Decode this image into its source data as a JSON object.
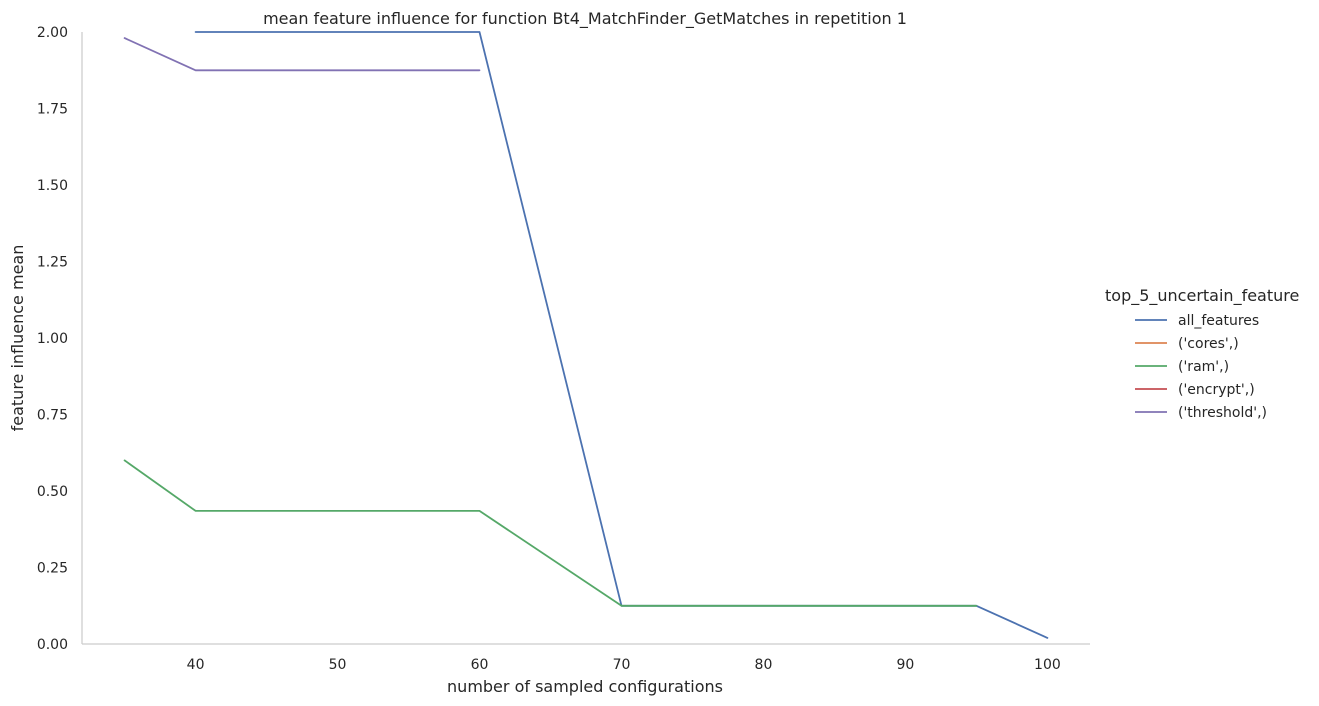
{
  "chart_data": {
    "type": "line",
    "title": "mean feature influence for function Bt4_MatchFinder_GetMatches in repetition 1",
    "xlabel": "number of sampled configurations",
    "ylabel": "feature influence mean",
    "xlim": [
      32,
      103
    ],
    "ylim": [
      0,
      2
    ],
    "xticks": [
      40,
      50,
      60,
      70,
      80,
      90,
      100
    ],
    "yticks": [
      0,
      0.25,
      0.5,
      0.75,
      1.0,
      1.25,
      1.5,
      1.75,
      2.0
    ],
    "ytick_labels": [
      "0.00",
      "0.25",
      "0.50",
      "0.75",
      "1.00",
      "1.25",
      "1.50",
      "1.75",
      "2.00"
    ],
    "grid": false,
    "legend": {
      "title": "top_5_uncertain_feature",
      "placement": "outside-right"
    },
    "series": [
      {
        "name": "all_features",
        "color": "#4c72b0",
        "x": [
          40,
          60,
          70,
          80,
          90,
          95,
          100
        ],
        "y": [
          2.0,
          2.0,
          0.125,
          0.125,
          0.125,
          0.125,
          0.02
        ]
      },
      {
        "name": "('cores',)",
        "color": "#dd8452",
        "x": [],
        "y": []
      },
      {
        "name": "('ram',)",
        "color": "#55a868",
        "x": [
          35,
          40,
          60,
          70,
          80,
          90,
          95
        ],
        "y": [
          0.6,
          0.435,
          0.435,
          0.125,
          0.125,
          0.125,
          0.125
        ]
      },
      {
        "name": "('encrypt',)",
        "color": "#c44e52",
        "x": [],
        "y": []
      },
      {
        "name": "('threshold',)",
        "color": "#8172b3",
        "x": [
          35,
          40,
          60
        ],
        "y": [
          1.98,
          1.875,
          1.875
        ]
      }
    ]
  }
}
